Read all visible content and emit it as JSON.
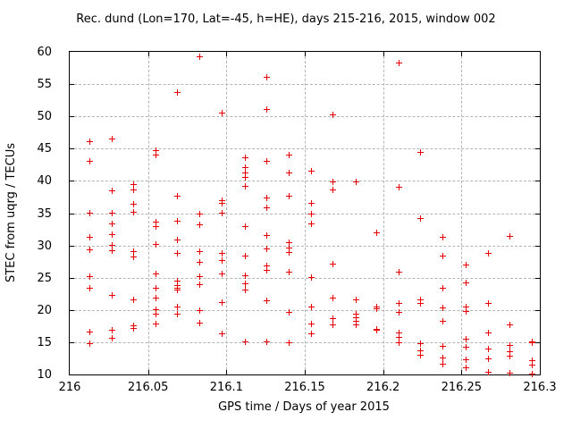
{
  "chart_data": {
    "type": "scatter",
    "title": "Rec. dund (Lon=170, Lat=-45, h=HE), days 215-216, 2015, window 002",
    "xlabel": "GPS time / Days of year 2015",
    "ylabel": "STEC from uqrg / TECUs",
    "xlim": [
      216.0,
      216.3
    ],
    "ylim": [
      10,
      60
    ],
    "xticks": {
      "values": [
        216.0,
        216.05,
        216.1,
        216.15,
        216.2,
        216.25,
        216.3
      ],
      "labels": [
        "216",
        "216.05",
        "216.1",
        "216.15",
        "216.2",
        "216.25",
        "216.3"
      ]
    },
    "yticks": {
      "values": [
        10,
        15,
        20,
        25,
        30,
        35,
        40,
        45,
        50,
        55,
        60
      ],
      "labels": [
        "10",
        "15",
        "20",
        "25",
        "30",
        "35",
        "40",
        "45",
        "50",
        "55",
        "60"
      ]
    },
    "grid": true,
    "legend": "none",
    "marker": {
      "shape": "plus",
      "color": "#e60000",
      "size": 7
    },
    "series": [
      {
        "name": "STEC",
        "points": [
          [
            216.013,
            46.1
          ],
          [
            216.013,
            43.0
          ],
          [
            216.013,
            35.0
          ],
          [
            216.013,
            31.3
          ],
          [
            216.013,
            29.3
          ],
          [
            216.013,
            25.1
          ],
          [
            216.013,
            23.4
          ],
          [
            216.013,
            16.6
          ],
          [
            216.013,
            14.8
          ],
          [
            216.027,
            46.5
          ],
          [
            216.027,
            38.4
          ],
          [
            216.027,
            35.0
          ],
          [
            216.027,
            33.3
          ],
          [
            216.027,
            31.7
          ],
          [
            216.027,
            30.0
          ],
          [
            216.027,
            29.2
          ],
          [
            216.027,
            22.2
          ],
          [
            216.027,
            16.8
          ],
          [
            216.027,
            15.6
          ],
          [
            216.041,
            39.5
          ],
          [
            216.041,
            38.6
          ],
          [
            216.041,
            36.4
          ],
          [
            216.041,
            35.2
          ],
          [
            216.041,
            29.0
          ],
          [
            216.041,
            28.2
          ],
          [
            216.041,
            21.5
          ],
          [
            216.041,
            17.5
          ],
          [
            216.041,
            17.1
          ],
          [
            216.055,
            44.7
          ],
          [
            216.055,
            44.0
          ],
          [
            216.055,
            33.6
          ],
          [
            216.055,
            32.9
          ],
          [
            216.055,
            30.1
          ],
          [
            216.055,
            25.6
          ],
          [
            216.055,
            23.4
          ],
          [
            216.055,
            21.8
          ],
          [
            216.055,
            20.0
          ],
          [
            216.055,
            19.4
          ],
          [
            216.055,
            17.8
          ],
          [
            216.069,
            53.7
          ],
          [
            216.069,
            37.6
          ],
          [
            216.069,
            33.8
          ],
          [
            216.069,
            30.9
          ],
          [
            216.069,
            28.7
          ],
          [
            216.069,
            24.5
          ],
          [
            216.069,
            23.8
          ],
          [
            216.069,
            23.3
          ],
          [
            216.069,
            23.1
          ],
          [
            216.069,
            20.5
          ],
          [
            216.069,
            19.4
          ],
          [
            216.083,
            59.2
          ],
          [
            216.083,
            34.9
          ],
          [
            216.083,
            33.2
          ],
          [
            216.083,
            29.0
          ],
          [
            216.083,
            27.4
          ],
          [
            216.083,
            25.1
          ],
          [
            216.083,
            23.9
          ],
          [
            216.083,
            19.9
          ],
          [
            216.083,
            18.0
          ],
          [
            216.097,
            50.5
          ],
          [
            216.097,
            37.0
          ],
          [
            216.097,
            36.5
          ],
          [
            216.097,
            35.0
          ],
          [
            216.097,
            28.7
          ],
          [
            216.097,
            27.7
          ],
          [
            216.097,
            25.6
          ],
          [
            216.097,
            21.2
          ],
          [
            216.097,
            16.3
          ],
          [
            216.112,
            43.6
          ],
          [
            216.112,
            42.1
          ],
          [
            216.112,
            41.2
          ],
          [
            216.112,
            40.5
          ],
          [
            216.112,
            39.1
          ],
          [
            216.112,
            32.9
          ],
          [
            216.112,
            28.3
          ],
          [
            216.112,
            25.3
          ],
          [
            216.112,
            24.0
          ],
          [
            216.112,
            23.1
          ],
          [
            216.112,
            15.0
          ],
          [
            216.126,
            56.0
          ],
          [
            216.126,
            51.0
          ],
          [
            216.126,
            43.0
          ],
          [
            216.126,
            37.4
          ],
          [
            216.126,
            35.9
          ],
          [
            216.126,
            31.5
          ],
          [
            216.126,
            29.5
          ],
          [
            216.126,
            26.8
          ],
          [
            216.126,
            26.2
          ],
          [
            216.126,
            21.4
          ],
          [
            216.126,
            15.0
          ],
          [
            216.14,
            44.0
          ],
          [
            216.14,
            41.2
          ],
          [
            216.14,
            37.7
          ],
          [
            216.14,
            30.4
          ],
          [
            216.14,
            29.6
          ],
          [
            216.14,
            28.9
          ],
          [
            216.14,
            25.8
          ],
          [
            216.14,
            19.6
          ],
          [
            216.14,
            14.9
          ],
          [
            216.154,
            41.5
          ],
          [
            216.154,
            36.5
          ],
          [
            216.154,
            34.8
          ],
          [
            216.154,
            33.3
          ],
          [
            216.154,
            25.0
          ],
          [
            216.154,
            20.5
          ],
          [
            216.154,
            17.8
          ],
          [
            216.154,
            16.3
          ],
          [
            216.168,
            50.3
          ],
          [
            216.168,
            39.8
          ],
          [
            216.168,
            38.6
          ],
          [
            216.168,
            27.1
          ],
          [
            216.168,
            21.8
          ],
          [
            216.168,
            18.6
          ],
          [
            216.168,
            17.7
          ],
          [
            216.183,
            39.9
          ],
          [
            216.183,
            21.6
          ],
          [
            216.183,
            19.4
          ],
          [
            216.183,
            18.8
          ],
          [
            216.183,
            18.3
          ],
          [
            216.183,
            17.7
          ],
          [
            216.196,
            31.9
          ],
          [
            216.196,
            20.4
          ],
          [
            216.196,
            20.2
          ],
          [
            216.196,
            17.0
          ],
          [
            216.196,
            16.8
          ],
          [
            216.21,
            58.2
          ],
          [
            216.21,
            39.0
          ],
          [
            216.21,
            25.8
          ],
          [
            216.21,
            21.0
          ],
          [
            216.21,
            19.6
          ],
          [
            216.21,
            16.4
          ],
          [
            216.21,
            15.7
          ],
          [
            216.21,
            14.9
          ],
          [
            216.224,
            44.4
          ],
          [
            216.224,
            34.2
          ],
          [
            216.224,
            21.5
          ],
          [
            216.224,
            21.0
          ],
          [
            216.224,
            14.8
          ],
          [
            216.224,
            13.7
          ],
          [
            216.224,
            13.0
          ],
          [
            216.238,
            31.3
          ],
          [
            216.238,
            28.3
          ],
          [
            216.238,
            23.3
          ],
          [
            216.238,
            20.3
          ],
          [
            216.238,
            18.3
          ],
          [
            216.238,
            14.3
          ],
          [
            216.238,
            12.6
          ],
          [
            216.238,
            11.6
          ],
          [
            216.253,
            26.9
          ],
          [
            216.253,
            24.2
          ],
          [
            216.253,
            20.5
          ],
          [
            216.253,
            19.8
          ],
          [
            216.253,
            15.5
          ],
          [
            216.253,
            14.2
          ],
          [
            216.253,
            12.3
          ],
          [
            216.253,
            11.0
          ],
          [
            216.267,
            28.8
          ],
          [
            216.267,
            21.0
          ],
          [
            216.267,
            16.5
          ],
          [
            216.267,
            13.9
          ],
          [
            216.267,
            12.4
          ],
          [
            216.267,
            10.4
          ],
          [
            216.281,
            31.4
          ],
          [
            216.281,
            17.7
          ],
          [
            216.281,
            14.5
          ],
          [
            216.281,
            13.5
          ],
          [
            216.281,
            12.8
          ],
          [
            216.281,
            10.2
          ],
          [
            216.295,
            15.1
          ],
          [
            216.295,
            14.9
          ],
          [
            216.295,
            12.2
          ],
          [
            216.295,
            11.4
          ],
          [
            216.295,
            10.1
          ]
        ]
      }
    ]
  }
}
